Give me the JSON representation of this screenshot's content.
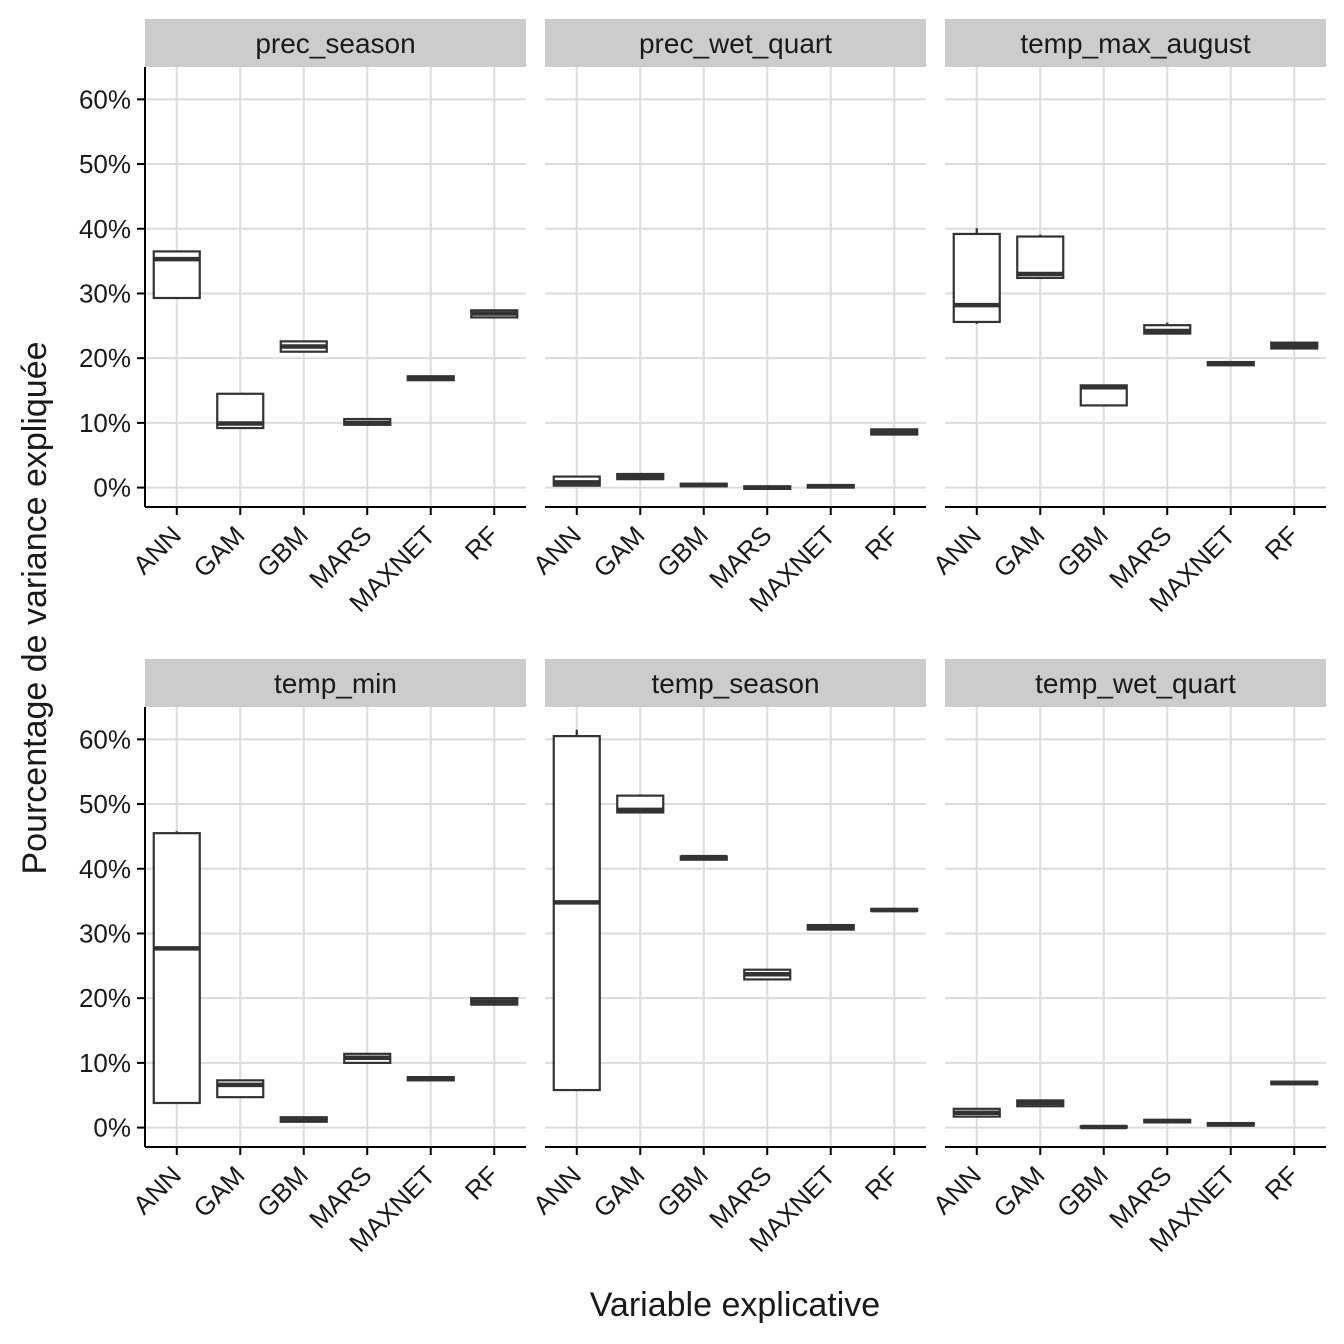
{
  "chart_data": {
    "type": "boxplot",
    "xlabel": "Variable explicative",
    "ylabel": "Pourcentage de variance expliquée",
    "ylim": [
      -3,
      65
    ],
    "y_ticks": [
      0,
      10,
      20,
      30,
      40,
      50,
      60
    ],
    "y_tick_labels": [
      "0%",
      "10%",
      "20%",
      "30%",
      "40%",
      "50%",
      "60%"
    ],
    "categories": [
      "ANN",
      "GAM",
      "GBM",
      "MARS",
      "MAXNET",
      "RF"
    ],
    "facets": [
      {
        "name": "prec_season",
        "boxes": [
          {
            "min": 29.3,
            "q1": 29.3,
            "median": 35.3,
            "q3": 36.5,
            "max": 36.5
          },
          {
            "min": 9.2,
            "q1": 9.2,
            "median": 9.9,
            "q3": 14.5,
            "max": 14.5
          },
          {
            "min": 21.0,
            "q1": 21.0,
            "median": 21.8,
            "q3": 22.6,
            "max": 22.6
          },
          {
            "min": 9.7,
            "q1": 9.7,
            "median": 10.0,
            "q3": 10.6,
            "max": 10.6
          },
          {
            "min": 16.5,
            "q1": 16.6,
            "median": 17.0,
            "q3": 17.2,
            "max": 17.3
          },
          {
            "min": 26.3,
            "q1": 26.3,
            "median": 26.9,
            "q3": 27.4,
            "max": 27.4
          }
        ]
      },
      {
        "name": "prec_wet_quart",
        "boxes": [
          {
            "min": 0.3,
            "q1": 0.3,
            "median": 0.8,
            "q3": 1.7,
            "max": 1.7
          },
          {
            "min": 1.3,
            "q1": 1.3,
            "median": 1.7,
            "q3": 2.1,
            "max": 2.1
          },
          {
            "min": 0.2,
            "q1": 0.2,
            "median": 0.4,
            "q3": 0.6,
            "max": 0.6
          },
          {
            "min": -0.2,
            "q1": -0.2,
            "median": 0.0,
            "q3": 0.2,
            "max": 0.2
          },
          {
            "min": 0.0,
            "q1": 0.0,
            "median": 0.2,
            "q3": 0.4,
            "max": 0.4
          },
          {
            "min": 8.2,
            "q1": 8.2,
            "median": 8.6,
            "q3": 9.0,
            "max": 9.0
          }
        ]
      },
      {
        "name": "temp_max_august",
        "boxes": [
          {
            "min": 25.3,
            "q1": 25.6,
            "median": 28.2,
            "q3": 39.2,
            "max": 40.1
          },
          {
            "min": 32.4,
            "q1": 32.4,
            "median": 33.0,
            "q3": 38.8,
            "max": 39.1
          },
          {
            "min": 12.7,
            "q1": 12.7,
            "median": 15.5,
            "q3": 15.8,
            "max": 15.8
          },
          {
            "min": 23.8,
            "q1": 23.8,
            "median": 24.2,
            "q3": 25.1,
            "max": 25.5
          },
          {
            "min": 18.9,
            "q1": 18.9,
            "median": 19.2,
            "q3": 19.4,
            "max": 19.4
          },
          {
            "min": 21.5,
            "q1": 21.5,
            "median": 22.0,
            "q3": 22.4,
            "max": 22.4
          }
        ]
      },
      {
        "name": "temp_min",
        "boxes": [
          {
            "min": 3.8,
            "q1": 3.8,
            "median": 27.7,
            "q3": 45.5,
            "max": 45.8
          },
          {
            "min": 4.7,
            "q1": 4.7,
            "median": 6.6,
            "q3": 7.3,
            "max": 7.3
          },
          {
            "min": 0.9,
            "q1": 0.9,
            "median": 1.2,
            "q3": 1.6,
            "max": 1.6
          },
          {
            "min": 10.0,
            "q1": 10.0,
            "median": 10.8,
            "q3": 11.4,
            "max": 11.4
          },
          {
            "min": 7.3,
            "q1": 7.3,
            "median": 7.6,
            "q3": 7.8,
            "max": 7.8
          },
          {
            "min": 19.0,
            "q1": 19.0,
            "median": 19.5,
            "q3": 20.0,
            "max": 20.0
          }
        ]
      },
      {
        "name": "temp_season",
        "boxes": [
          {
            "min": 5.8,
            "q1": 5.8,
            "median": 34.8,
            "q3": 60.5,
            "max": 61.5
          },
          {
            "min": 48.7,
            "q1": 48.7,
            "median": 49.1,
            "q3": 51.3,
            "max": 51.5
          },
          {
            "min": 41.4,
            "q1": 41.4,
            "median": 41.8,
            "q3": 41.9,
            "max": 41.9
          },
          {
            "min": 22.9,
            "q1": 22.9,
            "median": 23.7,
            "q3": 24.4,
            "max": 24.4
          },
          {
            "min": 30.6,
            "q1": 30.6,
            "median": 31.0,
            "q3": 31.3,
            "max": 31.3
          },
          {
            "min": 33.5,
            "q1": 33.5,
            "median": 33.6,
            "q3": 33.8,
            "max": 33.8
          }
        ]
      },
      {
        "name": "temp_wet_quart",
        "boxes": [
          {
            "min": 1.7,
            "q1": 1.7,
            "median": 2.3,
            "q3": 2.9,
            "max": 2.9
          },
          {
            "min": 3.3,
            "q1": 3.3,
            "median": 3.8,
            "q3": 4.2,
            "max": 4.2
          },
          {
            "min": 0.0,
            "q1": 0.0,
            "median": 0.1,
            "q3": 0.2,
            "max": 0.2
          },
          {
            "min": 0.8,
            "q1": 0.8,
            "median": 1.0,
            "q3": 1.2,
            "max": 1.2
          },
          {
            "min": 0.3,
            "q1": 0.3,
            "median": 0.5,
            "q3": 0.7,
            "max": 0.7
          },
          {
            "min": 6.7,
            "q1": 6.7,
            "median": 6.9,
            "q3": 7.1,
            "max": 7.1
          }
        ]
      }
    ]
  }
}
